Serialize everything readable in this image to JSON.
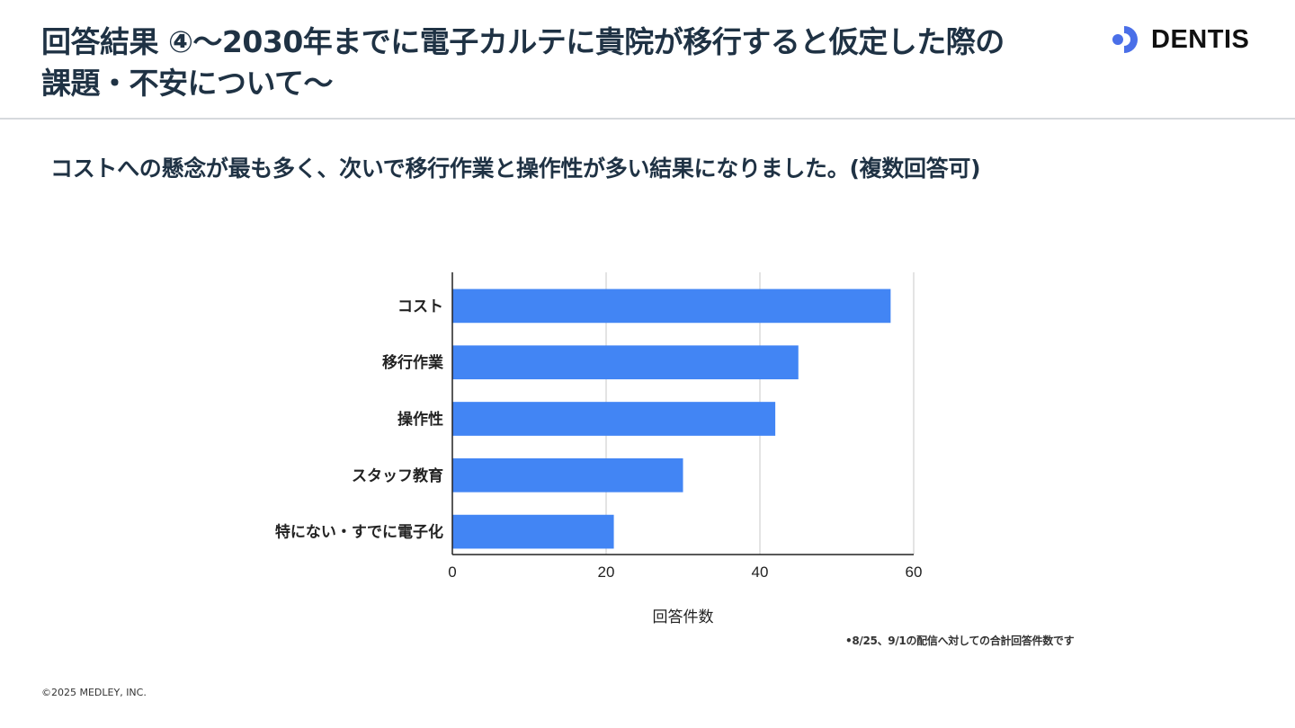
{
  "header": {
    "title_line1": "回答結果 ④〜2030年までに電子カルテに貴院が移行すると仮定した際の",
    "title_line2": "課題・不安について〜",
    "logo_text": "DENTIS"
  },
  "subtitle": "コストへの懸念が最も多く、次いで移行作業と操作性が多い結果になりました。(複数回答可)",
  "chart_data": {
    "type": "bar",
    "orientation": "horizontal",
    "categories": [
      "コスト",
      "移行作業",
      "操作性",
      "スタッフ教育",
      "特にない・すでに電子化"
    ],
    "values": [
      57,
      45,
      42,
      30,
      21
    ],
    "xlabel": "回答件数",
    "ylabel": "",
    "xlim": [
      0,
      60
    ],
    "xticks": [
      0,
      20,
      40,
      60
    ],
    "grid": true,
    "bar_color": "#4285f4"
  },
  "footnote": "•8/25、9/1の配信へ対しての合計回答件数です",
  "copyright": "©2025 MEDLEY, INC."
}
